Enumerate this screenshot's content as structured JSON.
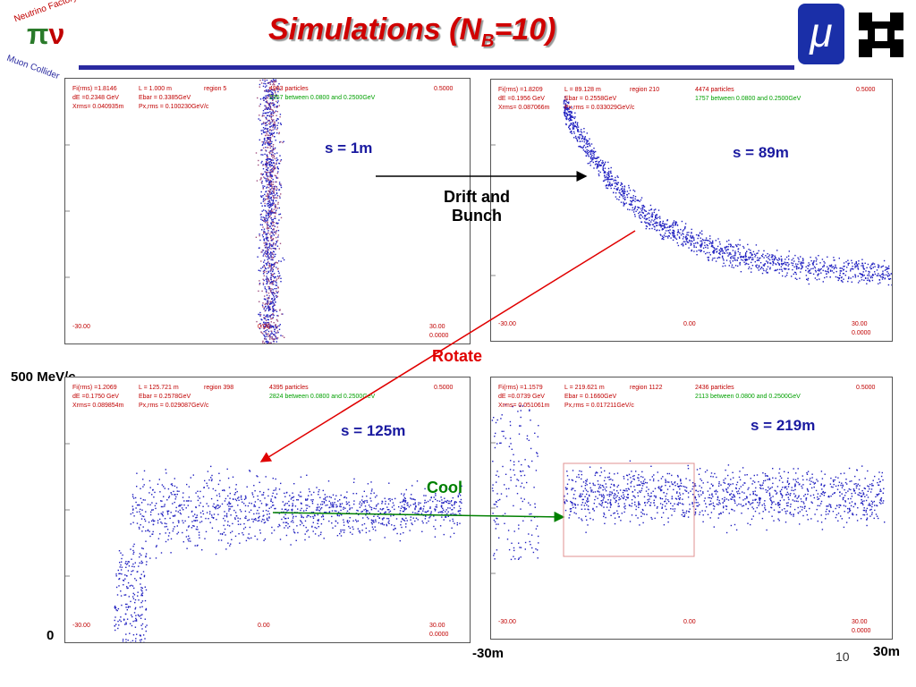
{
  "header": {
    "title_main": "Simulations (N",
    "title_sub": "B",
    "title_end": "=10)",
    "logo_top": "Neutrino Factory",
    "logo_bottom": "Muon Collider",
    "logo_mu": "μ"
  },
  "panels": [
    {
      "fi": "Fi(rms) =1.8146",
      "l": "L =  1.000 m",
      "region": "region   5",
      "particles": "4993 particles",
      "range": "2357 between 0.0800 and 0.2500GeV",
      "ymax": "0.5000",
      "de": "dE =0.2348 GeV",
      "ebar": "Ebar =  0.3385GeV",
      "xrms": "Xrms= 0.040935m",
      "pxrms": "Px,rms = 0.100230GeV/c",
      "xmin": "-30.00",
      "xmid": "0.00",
      "xmax": "30.00",
      "ymin": "0.0000",
      "label": "s = 1m"
    },
    {
      "fi": "Fi(rms) =1.8209",
      "l": "L = 89.128 m",
      "region": "region   210",
      "particles": "4474 particles",
      "range": "1757 between 0.0800 and 0.2500GeV",
      "ymax": "0.5000",
      "de": "dE =0.1956 GeV",
      "ebar": "Ebar =  0.2558GeV",
      "xrms": "Xrms= 0.087066m",
      "pxrms": "Px,rms = 0.033029GeV/c",
      "xmin": "-30.00",
      "xmid": "0.00",
      "xmax": "30.00",
      "ymin": "0.0000",
      "label": "s = 89m"
    },
    {
      "fi": "Fi(rms) =1.2069",
      "l": "L = 125.721 m",
      "region": "region   398",
      "particles": "4395 particles",
      "range": "2824 between 0.0800 and 0.2500GeV",
      "ymax": "0.5000",
      "de": "dE =0.1750 GeV",
      "ebar": "Ebar =  0.2578GeV",
      "xrms": "Xrms= 0.089854m",
      "pxrms": "Px,rms = 0.029087GeV/c",
      "xmin": "-30.00",
      "xmid": "0.00",
      "xmax": "30.00",
      "ymin": "0.0000",
      "label": "s = 125m"
    },
    {
      "fi": "Fi(rms) =1.1579",
      "l": "L = 219.621 m",
      "region": "region   1122",
      "particles": "2436 particles",
      "range": "2113 between 0.0800 and 0.2500GeV",
      "ymax": "0.5000",
      "de": "dE =0.0739 GeV",
      "ebar": "Ebar =  0.1660GeV",
      "xrms": "Xrms= 0.051061m",
      "pxrms": "Px,rms = 0.017211GeV/c",
      "xmin": "-30.00",
      "xmid": "0.00",
      "xmax": "30.00",
      "ymin": "0.0000",
      "label": "s = 219m"
    }
  ],
  "annotations": {
    "drift_1": "Drift and",
    "drift_2": "Bunch",
    "rotate": "Rotate",
    "cool": "Cool",
    "y_top": "500 MeV/c",
    "y_bottom": "0",
    "x_left": "-30m",
    "x_right": "30m",
    "page": "10"
  }
}
